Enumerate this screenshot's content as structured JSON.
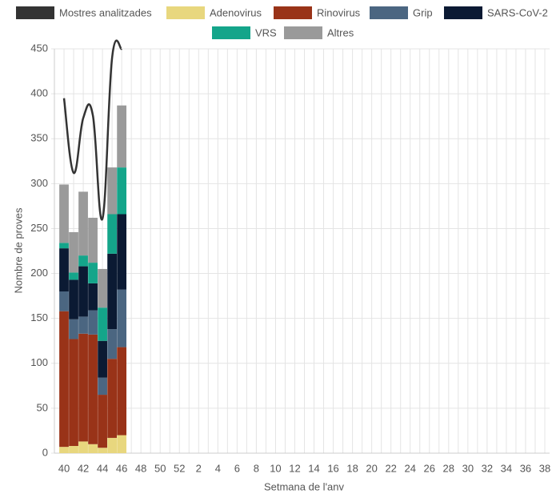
{
  "chart_data": {
    "type": "bar",
    "stacked": true,
    "x_label": "Setmana de l'anv",
    "y_label": "Nombre de proves",
    "categories": [
      40,
      null,
      42,
      null,
      44,
      null,
      46,
      null,
      48,
      null,
      50,
      null,
      52,
      null,
      2,
      null,
      4,
      null,
      6,
      null,
      8,
      null,
      10,
      null,
      12,
      null,
      14,
      null,
      16,
      null,
      18,
      null,
      20,
      null,
      22,
      null,
      24,
      null,
      26,
      null,
      28,
      null,
      30,
      null,
      32,
      null,
      34,
      null,
      36,
      null,
      38
    ],
    "ylim": [
      0,
      450
    ],
    "yticks": [
      0,
      50,
      100,
      150,
      200,
      250,
      300,
      350,
      400,
      450
    ],
    "grid": true,
    "series": [
      {
        "name": "Mostres analitzades",
        "type": "line",
        "color": "#333333",
        "values": [
          395,
          312,
          373,
          376,
          261,
          440,
          450,
          null,
          null,
          null,
          null,
          null,
          null,
          null,
          null,
          null,
          null,
          null,
          null,
          null,
          null,
          null,
          null,
          null,
          null,
          null,
          null,
          null,
          null,
          null,
          null,
          null,
          null,
          null,
          null,
          null,
          null,
          null,
          null,
          null,
          null,
          null,
          null,
          null,
          null,
          null,
          null,
          null,
          null,
          null,
          null
        ]
      },
      {
        "name": "Adenovirus",
        "color": "#e8d77e",
        "values": [
          7,
          8,
          13,
          10,
          6,
          17,
          20,
          null,
          null,
          null,
          null,
          null,
          null,
          null,
          null,
          null,
          null,
          null,
          null,
          null,
          null,
          null,
          null,
          null,
          null,
          null,
          null,
          null,
          null,
          null,
          null,
          null,
          null,
          null,
          null,
          null,
          null,
          null,
          null,
          null,
          null,
          null,
          null,
          null,
          null,
          null,
          null,
          null,
          null,
          null,
          null
        ]
      },
      {
        "name": "Rinovirus",
        "color": "#993318",
        "values": [
          151,
          119,
          120,
          122,
          59,
          88,
          98,
          null,
          null,
          null,
          null,
          null,
          null,
          null,
          null,
          null,
          null,
          null,
          null,
          null,
          null,
          null,
          null,
          null,
          null,
          null,
          null,
          null,
          null,
          null,
          null,
          null,
          null,
          null,
          null,
          null,
          null,
          null,
          null,
          null,
          null,
          null,
          null,
          null,
          null,
          null,
          null,
          null,
          null,
          null,
          null
        ]
      },
      {
        "name": "Grip",
        "color": "#4b6681",
        "values": [
          22,
          22,
          19,
          27,
          19,
          33,
          64,
          null,
          null,
          null,
          null,
          null,
          null,
          null,
          null,
          null,
          null,
          null,
          null,
          null,
          null,
          null,
          null,
          null,
          null,
          null,
          null,
          null,
          null,
          null,
          null,
          null,
          null,
          null,
          null,
          null,
          null,
          null,
          null,
          null,
          null,
          null,
          null,
          null,
          null,
          null,
          null,
          null,
          null,
          null,
          null
        ]
      },
      {
        "name": "SARS-CoV-2",
        "color": "#0b1a33",
        "values": [
          48,
          44,
          56,
          30,
          41,
          84,
          84,
          null,
          null,
          null,
          null,
          null,
          null,
          null,
          null,
          null,
          null,
          null,
          null,
          null,
          null,
          null,
          null,
          null,
          null,
          null,
          null,
          null,
          null,
          null,
          null,
          null,
          null,
          null,
          null,
          null,
          null,
          null,
          null,
          null,
          null,
          null,
          null,
          null,
          null,
          null,
          null,
          null,
          null,
          null,
          null
        ]
      },
      {
        "name": "VRS",
        "color": "#14a58a",
        "values": [
          6,
          8,
          12,
          23,
          37,
          44,
          52,
          null,
          null,
          null,
          null,
          null,
          null,
          null,
          null,
          null,
          null,
          null,
          null,
          null,
          null,
          null,
          null,
          null,
          null,
          null,
          null,
          null,
          null,
          null,
          null,
          null,
          null,
          null,
          null,
          null,
          null,
          null,
          null,
          null,
          null,
          null,
          null,
          null,
          null,
          null,
          null,
          null,
          null,
          null,
          null
        ]
      },
      {
        "name": "Altres",
        "color": "#9a9a9a",
        "values": [
          65,
          45,
          71,
          50,
          43,
          52,
          69,
          null,
          null,
          null,
          null,
          null,
          null,
          null,
          null,
          null,
          null,
          null,
          null,
          null,
          null,
          null,
          null,
          null,
          null,
          null,
          null,
          null,
          null,
          null,
          null,
          null,
          null,
          null,
          null,
          null,
          null,
          null,
          null,
          null,
          null,
          null,
          null,
          null,
          null,
          null,
          null,
          null,
          null,
          null,
          null
        ]
      }
    ]
  }
}
